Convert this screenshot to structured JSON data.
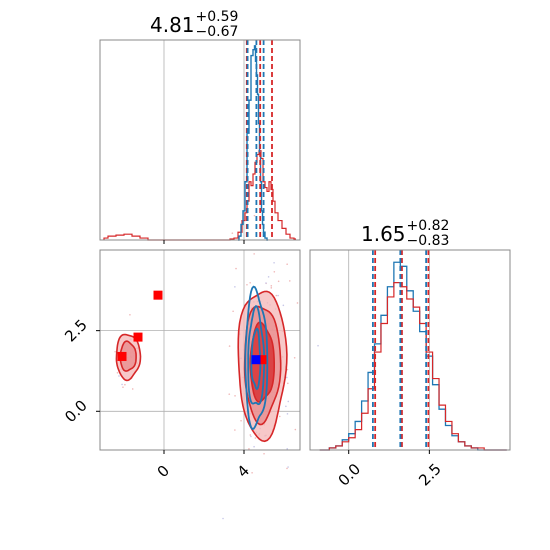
{
  "colors": {
    "red": "#d62728",
    "blue": "#1f77b4",
    "marker_red": "#ff0000",
    "marker_blue": "#0000ff",
    "grid": "#b0b0b0",
    "frame": "#888888"
  },
  "titles": {
    "p1": {
      "value": "4.81",
      "plus": "+0.59",
      "minus": "−0.67"
    },
    "p2": {
      "value": "1.65",
      "plus": "+0.82",
      "minus": "−0.83"
    }
  },
  "chart_data": {
    "type": "corner",
    "parameters": [
      "p1",
      "p2"
    ],
    "axes": {
      "p1": {
        "range": [
          -3.2,
          6.8
        ],
        "ticks": [
          0,
          4
        ],
        "tick_labels": [
          "0",
          "4"
        ],
        "grid": true
      },
      "p2": {
        "range": [
          -1.2,
          5.0
        ],
        "ticks": [
          0.0,
          2.5
        ],
        "tick_labels": [
          "0.0",
          "2.5"
        ],
        "grid": true
      }
    },
    "marginal_p1": {
      "red": {
        "x": [
          -3.0,
          -2.6,
          -2.2,
          -1.8,
          -1.4,
          -1.0,
          -0.6,
          -0.2,
          0.2,
          0.6,
          1.0,
          1.4,
          1.8,
          2.2,
          2.6,
          3.0,
          3.2,
          3.4,
          3.6,
          3.8,
          4.0,
          4.1,
          4.2,
          4.3,
          4.4,
          4.5,
          4.6,
          4.7,
          4.8,
          4.9,
          5.0,
          5.1,
          5.2,
          5.3,
          5.4,
          5.5,
          5.6,
          5.8,
          6.0,
          6.2,
          6.4,
          6.6
        ],
        "y": [
          0.01,
          0.02,
          0.025,
          0.03,
          0.02,
          0.01,
          0.0,
          0.0,
          0.0,
          0.0,
          0.0,
          0.0,
          0.0,
          0.0,
          0.0,
          0.0,
          0.0,
          0.005,
          0.01,
          0.04,
          0.1,
          0.14,
          0.2,
          0.3,
          0.28,
          0.34,
          0.4,
          0.44,
          0.46,
          0.42,
          0.3,
          0.27,
          0.25,
          0.3,
          0.26,
          0.2,
          0.14,
          0.1,
          0.06,
          0.03,
          0.01,
          0.005
        ],
        "quantiles": [
          4.14,
          4.81,
          5.4
        ]
      },
      "blue": {
        "x": [
          3.7,
          3.8,
          3.9,
          4.0,
          4.1,
          4.2,
          4.3,
          4.4,
          4.5,
          4.55,
          4.6,
          4.65,
          4.7,
          4.75,
          4.8,
          4.85,
          4.9,
          4.95,
          5.0,
          5.1,
          5.2
        ],
        "y": [
          0.0,
          0.02,
          0.08,
          0.15,
          0.3,
          0.55,
          0.72,
          0.95,
          0.98,
          1.0,
          0.92,
          0.85,
          0.75,
          0.6,
          0.45,
          0.3,
          0.15,
          0.08,
          0.04,
          0.01,
          0.0
        ],
        "quantiles": [
          4.18,
          4.62,
          4.98
        ]
      },
      "ylim": [
        0,
        1.03
      ]
    },
    "marginal_p2": {
      "red": {
        "x": [
          -0.9,
          -0.7,
          -0.5,
          -0.3,
          -0.1,
          0.1,
          0.3,
          0.5,
          0.7,
          0.9,
          1.1,
          1.3,
          1.5,
          1.7,
          1.9,
          2.1,
          2.3,
          2.5,
          2.7,
          2.9,
          3.1,
          3.3,
          3.5,
          3.7,
          3.9,
          4.1,
          4.3,
          4.5,
          4.7,
          4.9
        ],
        "y": [
          0.0,
          0.0,
          0.01,
          0.02,
          0.04,
          0.06,
          0.1,
          0.18,
          0.3,
          0.48,
          0.62,
          0.75,
          0.82,
          0.8,
          0.74,
          0.7,
          0.62,
          0.48,
          0.35,
          0.22,
          0.14,
          0.08,
          0.04,
          0.02,
          0.01,
          0.01,
          0.0,
          0.0,
          0.0,
          0.0
        ],
        "quantiles": [
          0.82,
          1.65,
          2.47
        ]
      },
      "blue": {
        "x": [
          -0.9,
          -0.7,
          -0.5,
          -0.3,
          -0.1,
          0.1,
          0.3,
          0.5,
          0.7,
          0.9,
          1.1,
          1.3,
          1.5,
          1.7,
          1.9,
          2.1,
          2.3,
          2.5,
          2.7,
          2.9,
          3.1,
          3.3,
          3.5,
          3.7,
          3.9,
          4.1,
          4.3,
          4.5,
          4.7,
          4.9
        ],
        "y": [
          0.0,
          0.0,
          0.01,
          0.02,
          0.05,
          0.08,
          0.14,
          0.24,
          0.38,
          0.52,
          0.66,
          0.8,
          0.92,
          0.9,
          0.78,
          0.68,
          0.58,
          0.46,
          0.32,
          0.2,
          0.12,
          0.07,
          0.04,
          0.02,
          0.01,
          0.0,
          0.0,
          0.0,
          0.0,
          0.0
        ],
        "quantiles": [
          0.75,
          1.6,
          2.4
        ]
      },
      "ylim": [
        0,
        0.98
      ]
    },
    "joint": {
      "red_modes": [
        {
          "cx": 4.9,
          "cy": 1.5,
          "levels": [
            {
              "rx": 1.2,
              "ry": 2.3
            },
            {
              "rx": 0.9,
              "ry": 1.8
            },
            {
              "rx": 0.6,
              "ry": 1.2
            }
          ]
        },
        {
          "cx": -1.8,
          "cy": 1.7,
          "levels": [
            {
              "rx": 0.6,
              "ry": 0.7
            },
            {
              "rx": 0.4,
              "ry": 0.45
            }
          ]
        }
      ],
      "blue_modes": [
        {
          "cx": 4.6,
          "cy": 1.6,
          "levels": [
            {
              "rx": 0.55,
              "ry": 2.1
            },
            {
              "rx": 0.4,
              "ry": 1.5
            },
            {
              "rx": 0.22,
              "ry": 0.9
            }
          ]
        }
      ],
      "markers_red": [
        {
          "x": -0.3,
          "y": 3.6
        },
        {
          "x": -1.3,
          "y": 2.3
        },
        {
          "x": -2.1,
          "y": 1.7
        },
        {
          "x": 4.9,
          "y": 1.6
        }
      ],
      "marker_blue": {
        "x": 4.6,
        "y": 1.6
      }
    }
  }
}
